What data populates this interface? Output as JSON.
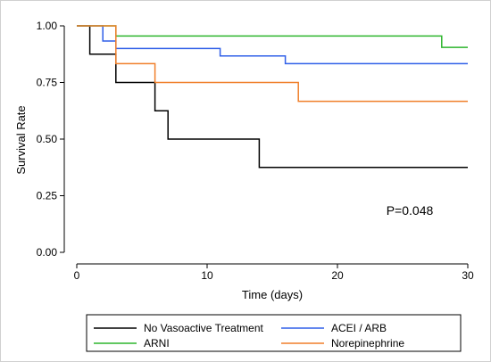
{
  "chart_data": {
    "type": "line",
    "title": "",
    "xlabel": "Time (days)",
    "ylabel": "Survival Rate",
    "xlim": [
      0,
      30
    ],
    "ylim": [
      0,
      1
    ],
    "x_ticks": [
      0,
      10,
      20,
      30
    ],
    "x_tick_labels": [
      "0",
      "10",
      "20",
      "30"
    ],
    "y_ticks": [
      0,
      0.25,
      0.5,
      0.75,
      1
    ],
    "y_tick_labels": [
      "0.00",
      "0.25",
      "0.50",
      "0.75",
      "1.00"
    ],
    "grid": false,
    "legend_position": "bottom",
    "annotation": "P=0.048",
    "series": [
      {
        "name": "No Vasoactive Treatment",
        "color": "#000000",
        "times": [
          0,
          1,
          3,
          6,
          7,
          14,
          30
        ],
        "survival": [
          1.0,
          0.875,
          0.75,
          0.625,
          0.5,
          0.375,
          0.375
        ]
      },
      {
        "name": "ACEI / ARB",
        "color": "#2f5fe8",
        "times": [
          0,
          2,
          3,
          11,
          16,
          30
        ],
        "survival": [
          1.0,
          0.933,
          0.9,
          0.867,
          0.833,
          0.833
        ]
      },
      {
        "name": "ARNI",
        "color": "#2db52d",
        "times": [
          0,
          3,
          28,
          30
        ],
        "survival": [
          1.0,
          0.955,
          0.905,
          0.905
        ]
      },
      {
        "name": "Norepinephrine",
        "color": "#f07f2a",
        "times": [
          0,
          3,
          6,
          17,
          30
        ],
        "survival": [
          1.0,
          0.833,
          0.75,
          0.667,
          0.667
        ]
      }
    ]
  }
}
